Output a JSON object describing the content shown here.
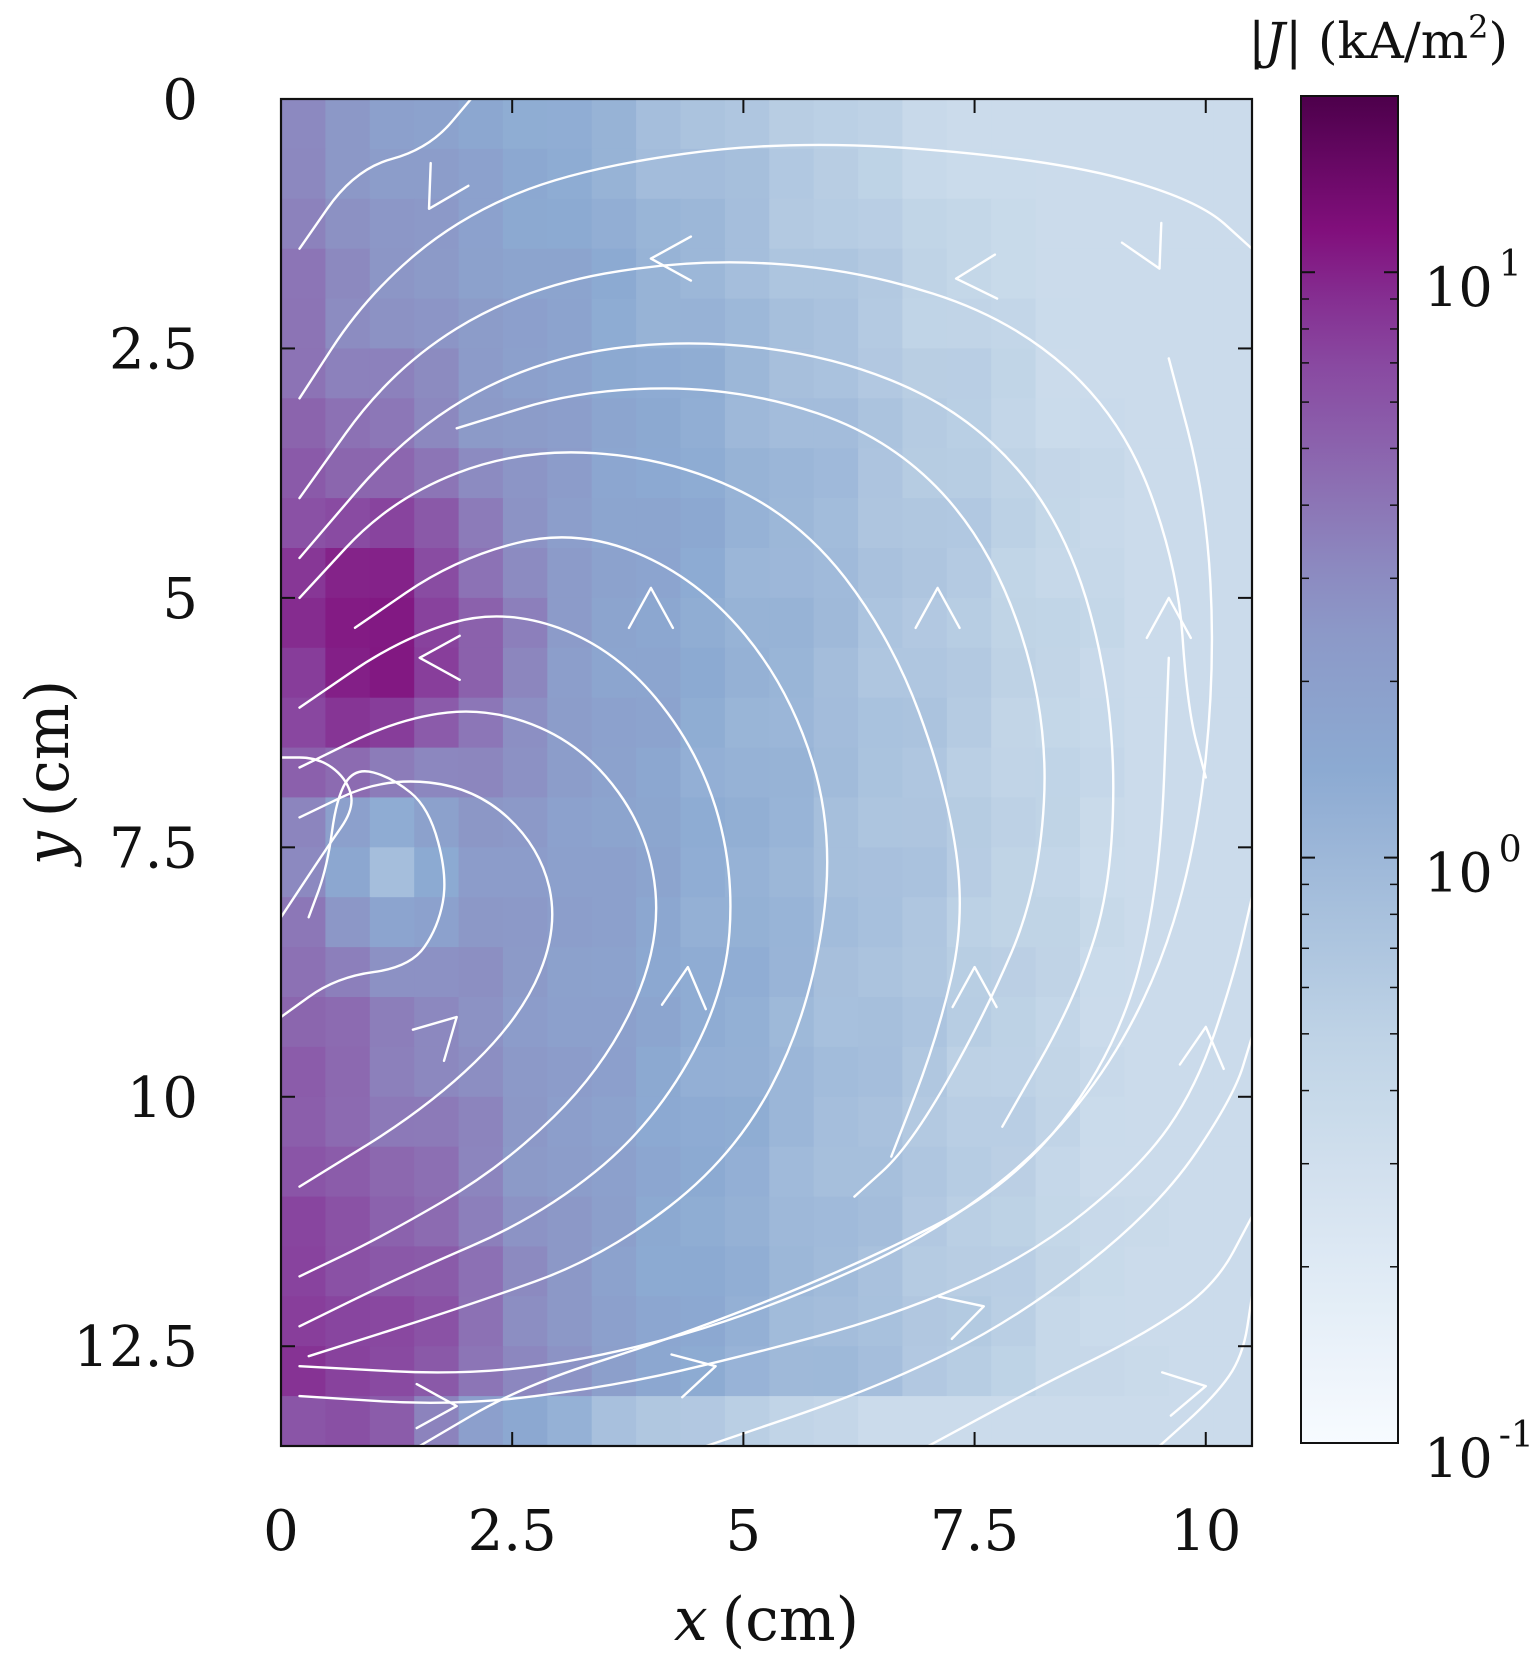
{
  "chart_data": {
    "type": "heatmap",
    "subtype": "current-density map with streamlines",
    "xlabel": {
      "var": "x",
      "unit": "(cm)"
    },
    "ylabel": {
      "var": "y",
      "unit": "(cm)"
    },
    "xlim": [
      0,
      10.5
    ],
    "ylim": [
      13.5,
      0
    ],
    "y_inverted": true,
    "xticks": [
      0,
      2.5,
      5,
      7.5,
      10
    ],
    "xtick_labels": [
      "0",
      "2.5",
      "5",
      "7.5",
      "10"
    ],
    "yticks": [
      0,
      2.5,
      5,
      7.5,
      10,
      12.5
    ],
    "ytick_labels": [
      "0",
      "2.5",
      "5",
      "7.5",
      "10",
      "12.5"
    ],
    "colorbar": {
      "label": {
        "open": "|",
        "var": "J",
        "mid": "| (kA/m",
        "sup": "2",
        "close": ")"
      },
      "scale": "log",
      "range": [
        0.1,
        20
      ],
      "ticks": [
        0.1,
        1,
        10
      ],
      "tick_labels": [
        {
          "base": "10",
          "exp": "-1"
        },
        {
          "base": "10",
          "exp": "0"
        },
        {
          "base": "10",
          "exp": "1"
        }
      ]
    },
    "colors": {
      "low": "#f7fbff",
      "mid": "#8c96c6",
      "high": "#4d004b",
      "streamline": "#ffffff"
    },
    "grid": {
      "nx": 22,
      "ny": 27,
      "dx_cm": 0.48,
      "dy_cm": 0.5,
      "field": "current density magnitude |J| in kA/m^2, broad maximum near x~1 cm, y~5.5 cm; low-current pocket near x~1 cm, y~7.5 cm; decreasing toward x=10.5 cm"
    },
    "streamlines": [
      {
        "dir": "cw",
        "arrows": 3,
        "points": [
          [
            0.2,
            0.8
          ],
          [
            0.8,
            0
          ],
          [
            1.5,
            -0.1
          ]
        ]
      },
      {
        "dir": "ccw",
        "points": [
          [
            0.3,
            13
          ],
          [
            2,
            13.1
          ],
          [
            5,
            12.7
          ],
          [
            7.5,
            12.3
          ],
          [
            10.3,
            12.9
          ]
        ]
      },
      {
        "dir": "ccw",
        "points": [
          [
            0.2,
            12.7
          ],
          [
            3,
            12.9
          ],
          [
            5.5,
            12.3
          ],
          [
            8,
            11.4
          ],
          [
            9.8,
            10
          ]
        ]
      },
      {
        "dir": "ccw",
        "points": [
          [
            0.2,
            12.4
          ],
          [
            3,
            12.5
          ],
          [
            5,
            12
          ],
          [
            7,
            11
          ],
          [
            9.2,
            8.5
          ]
        ]
      }
    ]
  }
}
